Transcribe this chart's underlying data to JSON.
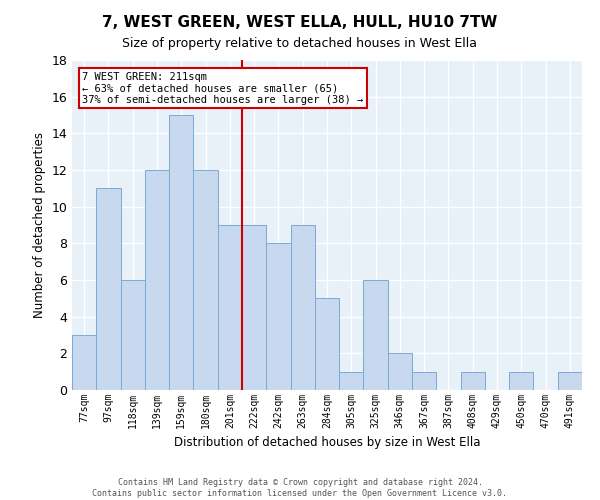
{
  "title1": "7, WEST GREEN, WEST ELLA, HULL, HU10 7TW",
  "title2": "Size of property relative to detached houses in West Ella",
  "xlabel": "Distribution of detached houses by size in West Ella",
  "ylabel": "Number of detached properties",
  "categories": [
    "77sqm",
    "97sqm",
    "118sqm",
    "139sqm",
    "159sqm",
    "180sqm",
    "201sqm",
    "222sqm",
    "242sqm",
    "263sqm",
    "284sqm",
    "305sqm",
    "325sqm",
    "346sqm",
    "367sqm",
    "387sqm",
    "408sqm",
    "429sqm",
    "450sqm",
    "470sqm",
    "491sqm"
  ],
  "values": [
    3,
    11,
    6,
    12,
    15,
    12,
    9,
    9,
    8,
    9,
    5,
    1,
    6,
    2,
    1,
    0,
    1,
    0,
    1,
    0,
    1
  ],
  "bar_color": "#c8d9ef",
  "bar_edge_color": "#7aaad4",
  "red_line_x": 6.5,
  "annotation_line1": "7 WEST GREEN: 211sqm",
  "annotation_line2": "← 63% of detached houses are smaller (65)",
  "annotation_line3": "37% of semi-detached houses are larger (38) →",
  "annotation_box_color": "#ffffff",
  "annotation_box_edge": "#cc0000",
  "ylim": [
    0,
    18
  ],
  "yticks": [
    0,
    2,
    4,
    6,
    8,
    10,
    12,
    14,
    16,
    18
  ],
  "background_color": "#e8f0f8",
  "grid_color": "#ffffff",
  "footer1": "Contains HM Land Registry data © Crown copyright and database right 2024.",
  "footer2": "Contains public sector information licensed under the Open Government Licence v3.0."
}
